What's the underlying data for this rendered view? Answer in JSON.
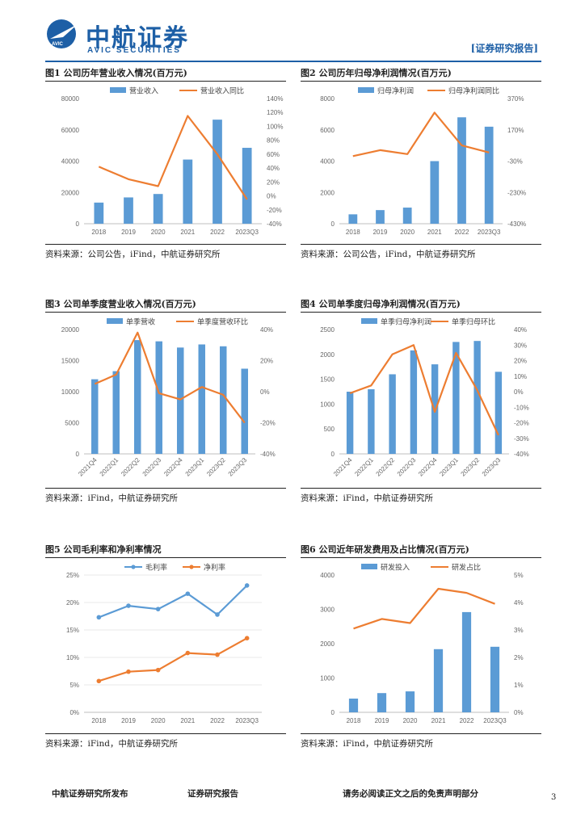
{
  "header": {
    "logo_cn": "中航证券",
    "logo_en": "AVIC SECURITIES",
    "report_tag": "[证券研究报告]",
    "logo_small": "AVIC"
  },
  "colors": {
    "bar": "#5b9bd5",
    "line": "#ed7d31",
    "brand": "#1d5fa6"
  },
  "footer": {
    "left": "中航证券研究所发布",
    "middle": "证券研究报告",
    "right": "请务必阅读正文之后的免责声明部分",
    "page": "3"
  },
  "chart_data": [
    {
      "id": "fig1",
      "type": "bar+line",
      "title": "图1  公司历年营业收入情况(百万元)",
      "source": "资料来源：公司公告，iFind，中航证券研究所",
      "categories": [
        "2018",
        "2019",
        "2020",
        "2021",
        "2022",
        "2023Q3"
      ],
      "bar": {
        "name": "营业收入",
        "values": [
          13500,
          16800,
          19000,
          41000,
          66500,
          48500
        ]
      },
      "line": {
        "name": "营业收入同比",
        "values": [
          42,
          24,
          14,
          115,
          60,
          -5
        ]
      },
      "left_axis": {
        "min": 0,
        "max": 80000,
        "step": 20000,
        "ticks": [
          "0",
          "20000",
          "40000",
          "60000",
          "80000"
        ]
      },
      "right_axis": {
        "min": -40,
        "max": 140,
        "step": 20,
        "ticks": [
          "-40%",
          "-20%",
          "0%",
          "20%",
          "40%",
          "60%",
          "80%",
          "100%",
          "120%",
          "140%"
        ]
      }
    },
    {
      "id": "fig2",
      "type": "bar+line",
      "title": "图2  公司历年归母净利润情况(百万元)",
      "source": "资料来源：公司公告，iFind，中航证券研究所",
      "categories": [
        "2018",
        "2019",
        "2020",
        "2021",
        "2022",
        "2023Q3"
      ],
      "bar": {
        "name": "归母净利润",
        "values": [
          600,
          870,
          1030,
          4000,
          6800,
          6200
        ]
      },
      "line": {
        "name": "归母净利润同比",
        "values": [
          2,
          40,
          15,
          280,
          70,
          25
        ]
      },
      "left_axis": {
        "min": 0,
        "max": 8000,
        "step": 2000,
        "ticks": [
          "0",
          "2000",
          "4000",
          "6000",
          "8000"
        ]
      },
      "right_axis": {
        "min": -430,
        "max": 370,
        "step": 200,
        "ticks": [
          "-430%",
          "-230%",
          "-30%",
          "170%",
          "370%"
        ]
      }
    },
    {
      "id": "fig3",
      "type": "bar+line",
      "title": "图3  公司单季度营业收入情况(百万元)",
      "source": "资料来源：iFind，中航证券研究所",
      "categories": [
        "2021Q4",
        "2022Q1",
        "2022Q2",
        "2022Q3",
        "2022Q4",
        "2023Q1",
        "2023Q2",
        "2023Q3"
      ],
      "bar": {
        "name": "单季营收",
        "values": [
          12000,
          13300,
          18300,
          18100,
          17100,
          17600,
          17300,
          13700
        ]
      },
      "line": {
        "name": "单季度营收环比",
        "values": [
          5,
          11,
          38,
          -1,
          -5,
          3,
          -2,
          -20
        ]
      },
      "left_axis": {
        "min": 0,
        "max": 20000,
        "step": 5000,
        "ticks": [
          "0",
          "5000",
          "10000",
          "15000",
          "20000"
        ]
      },
      "right_axis": {
        "min": -40,
        "max": 40,
        "step": 20,
        "ticks": [
          "-40%",
          "-20%",
          "0%",
          "20%",
          "40%"
        ]
      }
    },
    {
      "id": "fig4",
      "type": "bar+line",
      "title": "图4  公司单季度归母净利润情况(百万元)",
      "source": "资料来源：iFind，中航证券研究所",
      "categories": [
        "2021Q4",
        "2022Q1",
        "2022Q2",
        "2022Q3",
        "2022Q4",
        "2023Q1",
        "2023Q2",
        "2023Q3"
      ],
      "bar": {
        "name": "单季归母净利润",
        "values": [
          1250,
          1300,
          1600,
          2080,
          1800,
          2250,
          2270,
          1650
        ]
      },
      "line": {
        "name": "单季归母环比",
        "values": [
          -1,
          4,
          24,
          30,
          -13,
          25,
          1,
          -28
        ]
      },
      "left_axis": {
        "min": 0,
        "max": 2500,
        "step": 500,
        "ticks": [
          "0",
          "500",
          "1000",
          "1500",
          "2000",
          "2500"
        ]
      },
      "right_axis": {
        "min": -40,
        "max": 40,
        "step": 10,
        "ticks": [
          "-40%",
          "-30%",
          "-20%",
          "-10%",
          "0%",
          "10%",
          "20%",
          "30%",
          "40%"
        ]
      }
    },
    {
      "id": "fig5",
      "type": "line",
      "title": "图5  公司毛利率和净利率情况",
      "source": "资料来源：iFind，中航证券研究所",
      "categories": [
        "2018",
        "2019",
        "2020",
        "2021",
        "2022",
        "2023Q3"
      ],
      "series": [
        {
          "name": "毛利率",
          "color": "#5b9bd5",
          "values": [
            17.3,
            19.4,
            18.8,
            21.6,
            17.8,
            23.1
          ]
        },
        {
          "name": "净利率",
          "color": "#ed7d31",
          "values": [
            5.7,
            7.4,
            7.7,
            10.8,
            10.5,
            13.5
          ]
        }
      ],
      "left_axis": {
        "min": 0,
        "max": 25,
        "step": 5,
        "ticks": [
          "0%",
          "5%",
          "10%",
          "15%",
          "20%",
          "25%"
        ]
      }
    },
    {
      "id": "fig6",
      "type": "bar+line",
      "title": "图6  公司近年研发费用及占比情况(百万元)",
      "source": "资料来源：iFind，中航证券研究所",
      "categories": [
        "2018",
        "2019",
        "2020",
        "2021",
        "2022",
        "2023Q3"
      ],
      "bar": {
        "name": "研发投入",
        "values": [
          400,
          560,
          610,
          1840,
          2920,
          1910
        ]
      },
      "line": {
        "name": "研发占比",
        "values": [
          3.05,
          3.4,
          3.25,
          4.5,
          4.35,
          3.95
        ]
      },
      "left_axis": {
        "min": 0,
        "max": 4000,
        "step": 1000,
        "ticks": [
          "0",
          "1000",
          "2000",
          "3000",
          "4000"
        ]
      },
      "right_axis": {
        "min": 0,
        "max": 5,
        "step": 1,
        "ticks": [
          "0%",
          "1%",
          "2%",
          "3%",
          "4%",
          "5%"
        ]
      }
    }
  ]
}
